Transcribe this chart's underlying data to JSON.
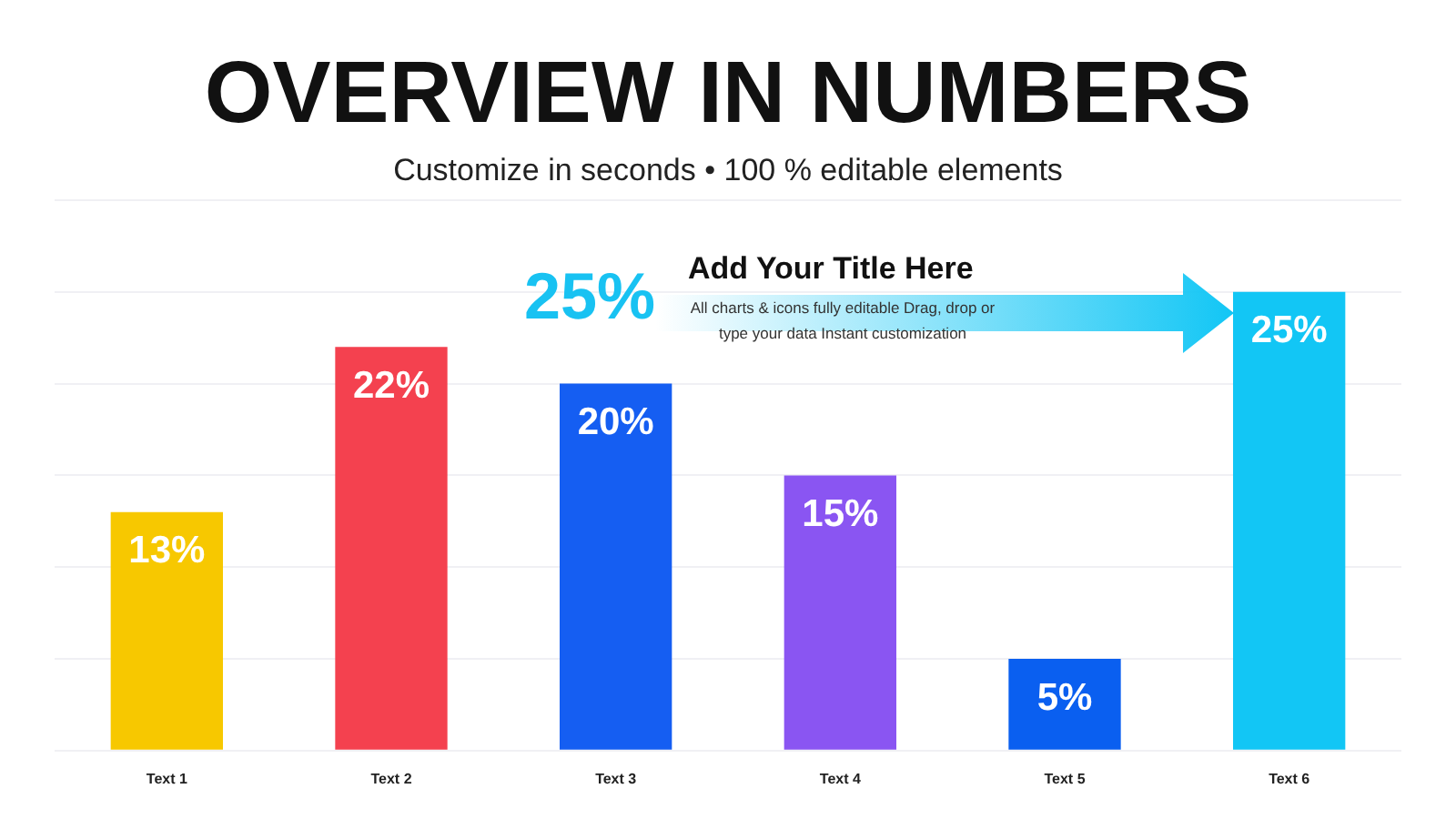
{
  "chart_data": {
    "type": "bar",
    "title": "OVERVIEW IN NUMBERS",
    "subtitle": "Customize in seconds • 100 % editable elements",
    "categories": [
      "Text 1",
      "Text 2",
      "Text 3",
      "Text 4",
      "Text 5",
      "Text 6"
    ],
    "values": [
      13,
      22,
      20,
      15,
      5,
      25
    ],
    "colors": [
      "#f7c800",
      "#f4414f",
      "#155ef2",
      "#8a55f2",
      "#0a5ff0",
      "#12c6f5"
    ],
    "value_labels": [
      "13%",
      "22%",
      "20%",
      "15%",
      "5%",
      "25%"
    ],
    "ylim": [
      0,
      30
    ],
    "yticks": [
      {
        "value": 0,
        "label": null
      },
      {
        "value": 5,
        "label": null
      },
      {
        "value": 10,
        "label": null
      },
      {
        "value": 15,
        "label": null
      },
      {
        "value": 20,
        "label": null
      },
      {
        "value": 25,
        "label": null
      },
      {
        "value": 30,
        "label": null
      }
    ],
    "tick_labels": "x",
    "grid": "y",
    "annotations": [
      "25%",
      "Add Your Title Here",
      "All charts & icons fully editable Drag, drop or type your data Instant customization"
    ]
  }
}
